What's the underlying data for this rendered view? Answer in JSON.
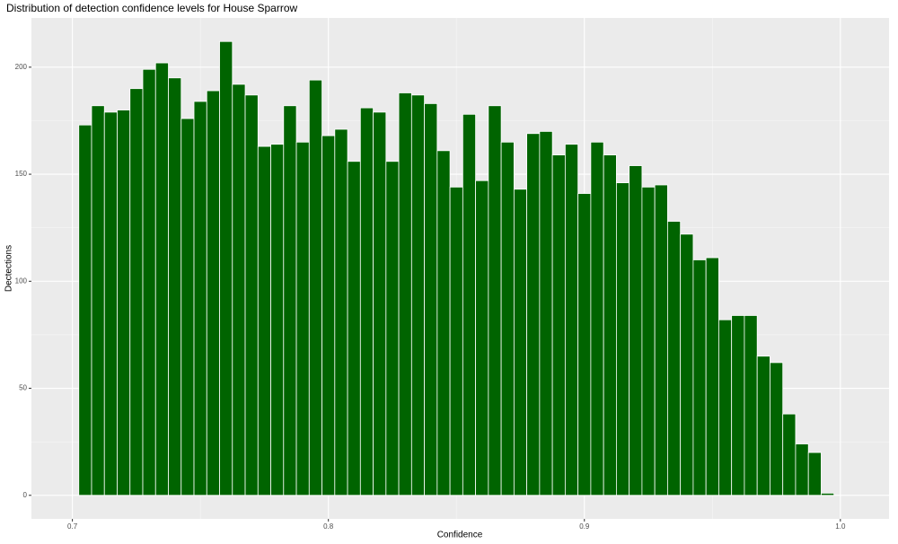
{
  "chart_data": {
    "type": "histogram",
    "title": "Distribution of detection confidence levels for House Sparrow",
    "x_label": "Confidence",
    "y_label": "Dectections",
    "bins": [
      0.7025,
      0.7075,
      0.7125,
      0.7175,
      0.7225,
      0.7275,
      0.7325,
      0.7375,
      0.7425,
      0.7475,
      0.7525,
      0.7575,
      0.7625,
      0.7675,
      0.7725,
      0.7775,
      0.7825,
      0.7875,
      0.7925,
      0.7975,
      0.8025,
      0.8075,
      0.8125,
      0.8175,
      0.8225,
      0.8275,
      0.8325,
      0.8375,
      0.8425,
      0.8475,
      0.8525,
      0.8575,
      0.8625,
      0.8675,
      0.8725,
      0.8775,
      0.8825,
      0.8875,
      0.8925,
      0.8975,
      0.9025,
      0.9075,
      0.9125,
      0.9175,
      0.9225,
      0.9275,
      0.9325,
      0.9375,
      0.9425,
      0.9475,
      0.9525,
      0.9575,
      0.9625,
      0.9675,
      0.9725,
      0.9775,
      0.9825,
      0.9875,
      0.9925,
      0.9975
    ],
    "values": [
      173,
      182,
      179,
      180,
      190,
      199,
      202,
      195,
      176,
      184,
      189,
      212,
      192,
      187,
      163,
      164,
      182,
      165,
      194,
      168,
      171,
      156,
      181,
      179,
      156,
      188,
      187,
      183,
      161,
      144,
      178,
      147,
      182,
      165,
      143,
      169,
      170,
      159,
      164,
      141,
      165,
      159,
      146,
      154,
      144,
      145,
      128,
      122,
      110,
      111,
      82,
      84,
      84,
      65,
      62,
      38,
      24,
      20,
      1
    ],
    "color": "#006400",
    "xlim": [
      0.684,
      1.019
    ],
    "ylim": [
      -11,
      223
    ],
    "xticks": [
      0.7,
      0.8,
      0.9,
      {
        "value": 1.0,
        "label": "1.0"
      }
    ],
    "yticks": [
      0,
      50,
      100,
      150,
      200
    ],
    "grid": true
  }
}
